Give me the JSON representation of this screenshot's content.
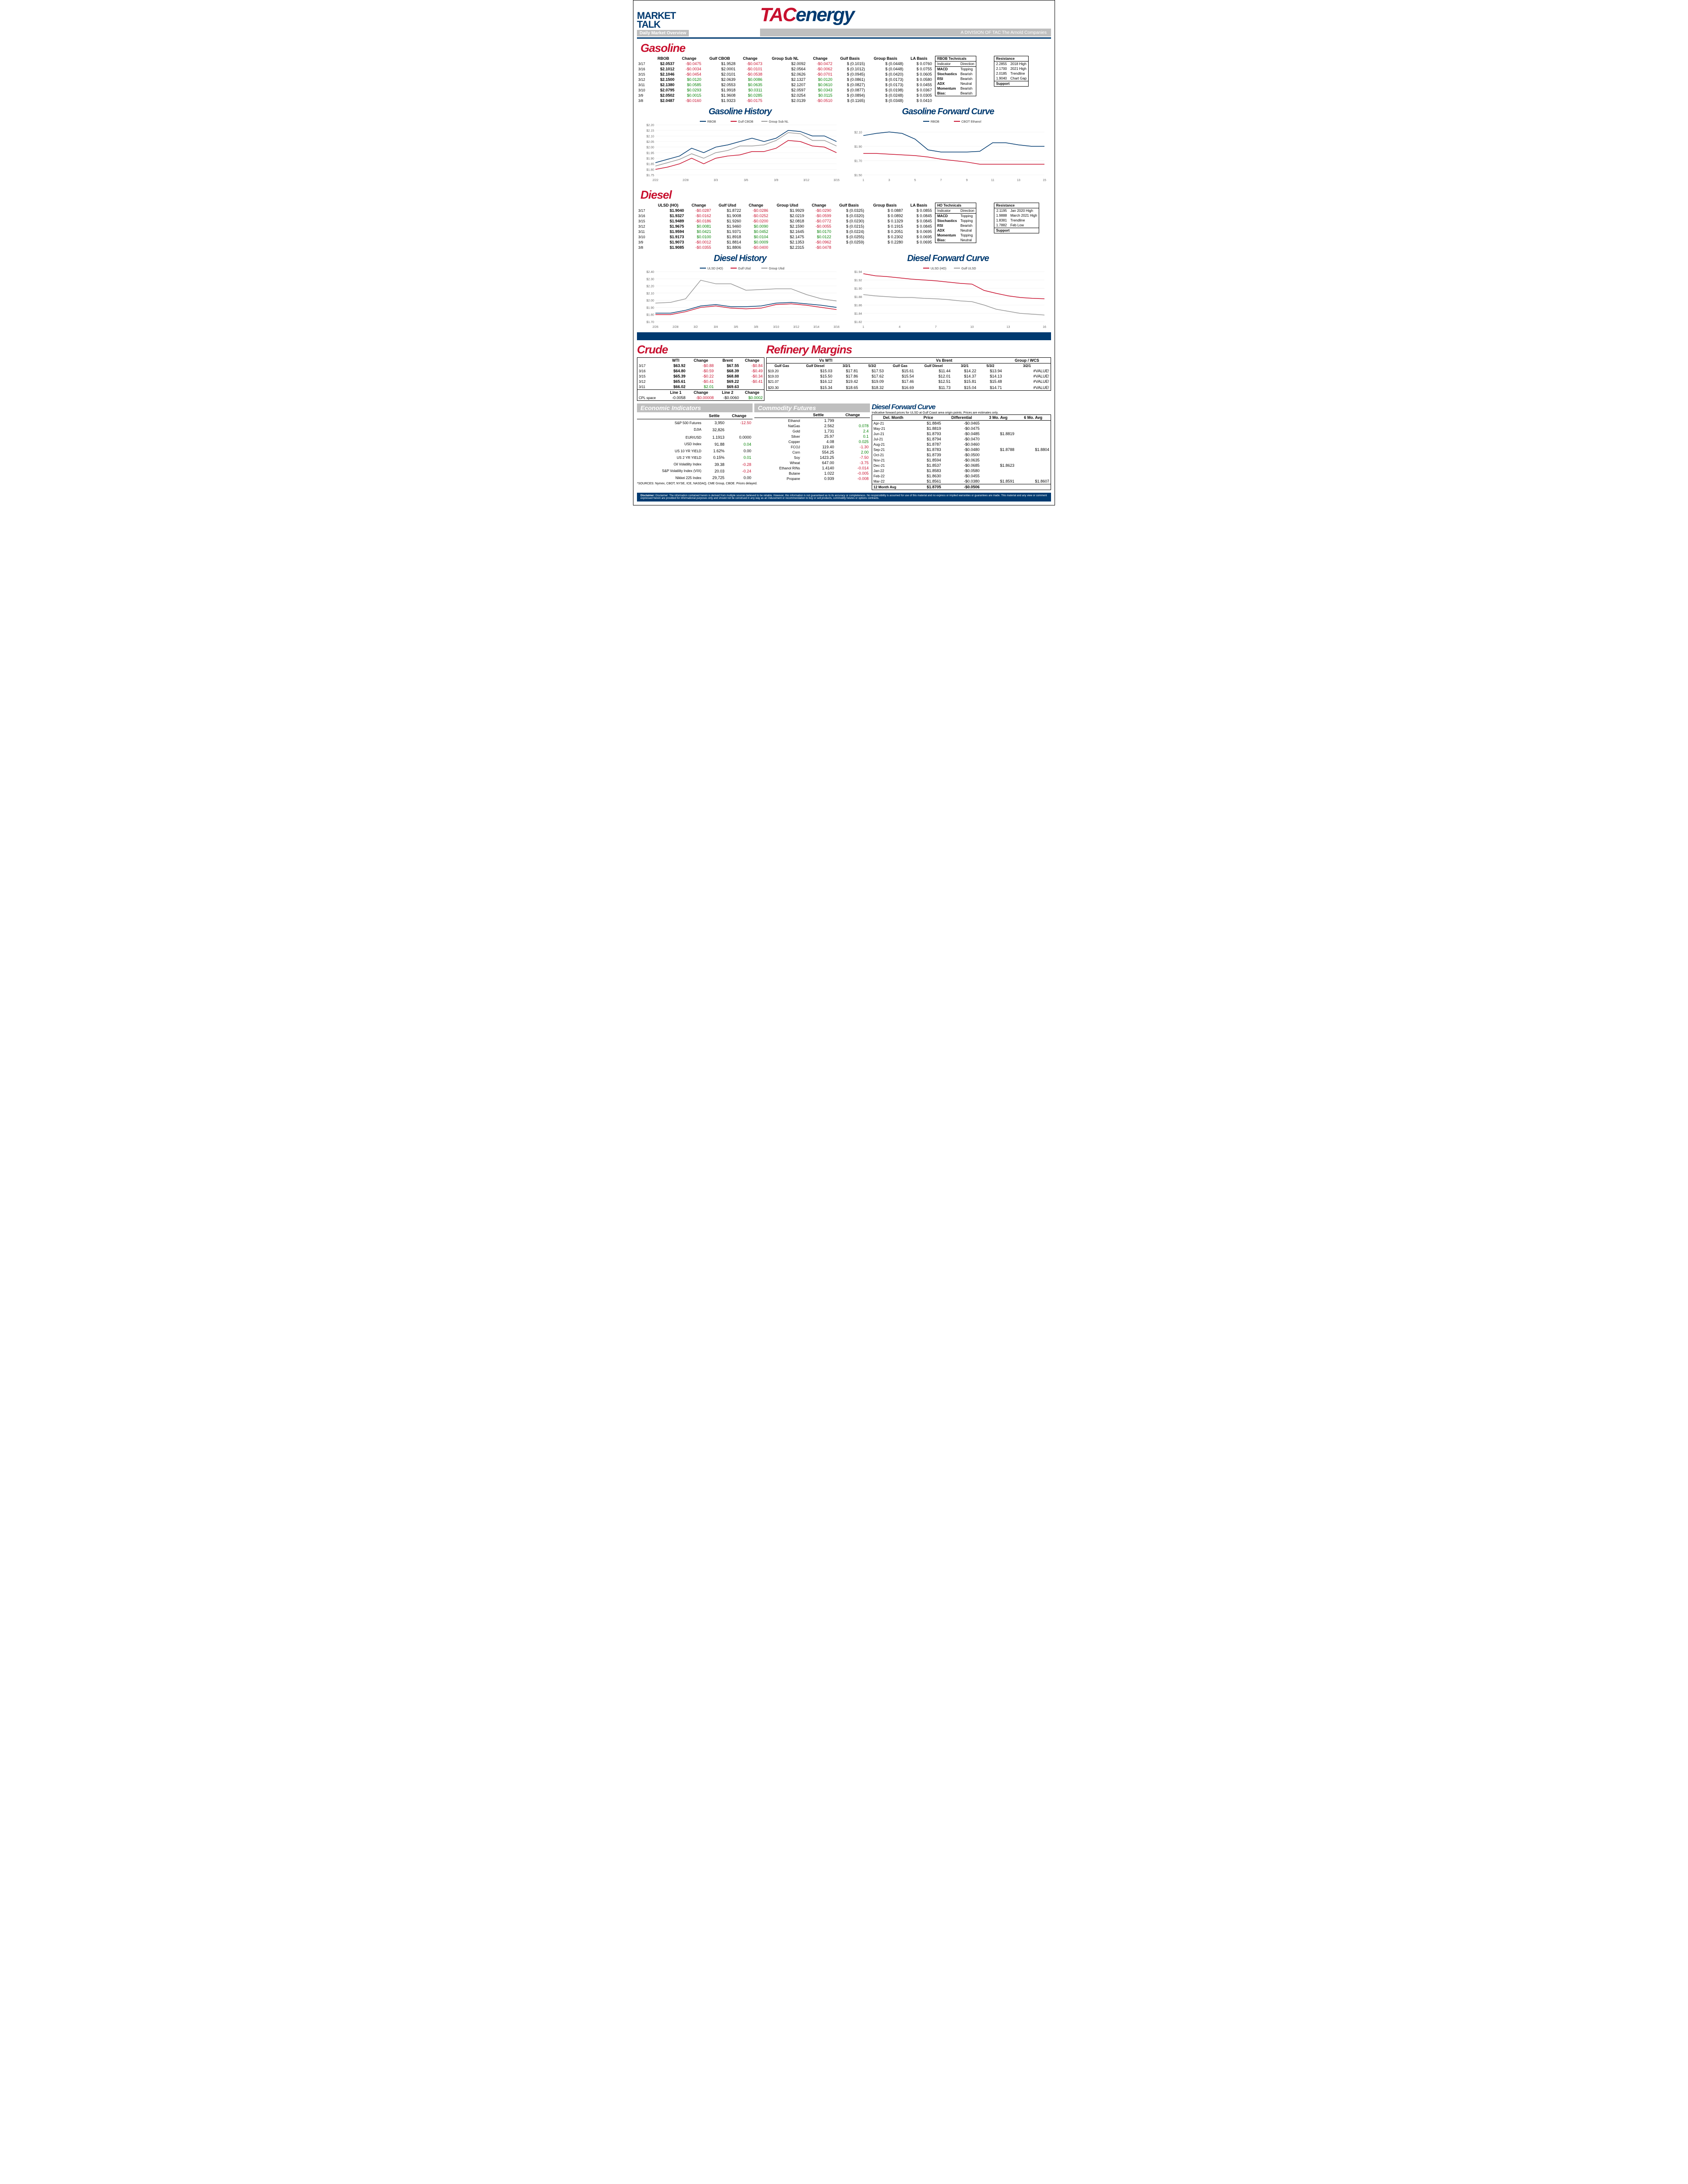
{
  "header": {
    "logo_l1": "MARKET",
    "logo_l2": "TALK",
    "subtitle": "Daily Market Overview",
    "tac": "TAC",
    "energy": "energy",
    "division": "A DIVISION OF TAC The Arnold Companies"
  },
  "gasoline": {
    "title": "Gasoline",
    "headers": [
      "",
      "RBOB",
      "Change",
      "Gulf CBOB",
      "Change",
      "Group Sub NL",
      "Change",
      "Gulf Basis",
      "Group Basis",
      "LA Basis"
    ],
    "rows": [
      [
        "3/17",
        "$2.0537",
        "-$0.0475",
        "$1.9528",
        "-$0.0473",
        "$2.0092",
        "-$0.0472",
        "$ (0.1015)",
        "$    (0.0448)",
        "$   0.0760"
      ],
      [
        "3/16",
        "$2.1012",
        "-$0.0034",
        "$2.0001",
        "-$0.0101",
        "$2.0564",
        "-$0.0062",
        "$ (0.1012)",
        "$    (0.0448)",
        "$   0.0755"
      ],
      [
        "3/15",
        "$2.1046",
        "-$0.0454",
        "$2.0101",
        "-$0.0538",
        "$2.0626",
        "-$0.0701",
        "$ (0.0945)",
        "$    (0.0420)",
        "$   0.0605"
      ],
      [
        "3/12",
        "$2.1500",
        "$0.0120",
        "$2.0639",
        "$0.0086",
        "$2.1327",
        "$0.0120",
        "$ (0.0861)",
        "$    (0.0173)",
        "$   0.0580"
      ],
      [
        "3/11",
        "$2.1380",
        "$0.0585",
        "$2.0553",
        "$0.0635",
        "$2.1207",
        "$0.0610",
        "$ (0.0827)",
        "$    (0.0173)",
        "$   0.0455"
      ],
      [
        "3/10",
        "$2.0795",
        "$0.0293",
        "$1.9918",
        "$0.0311",
        "$2.0597",
        "$0.0343",
        "$ (0.0877)",
        "$    (0.0198)",
        "$   0.0367"
      ],
      [
        "3/9",
        "$2.0502",
        "$0.0015",
        "$1.9608",
        "$0.0285",
        "$2.0254",
        "$0.0115",
        "$ (0.0894)",
        "$    (0.0248)",
        "$   0.0305"
      ],
      [
        "3/8",
        "$2.0487",
        "-$0.0160",
        "$1.9323",
        "-$0.0175",
        "$2.0139",
        "-$0.0510",
        "$ (0.1165)",
        "$    (0.0348)",
        "$   0.0410"
      ]
    ],
    "tech_title": "RBOB Technicals",
    "tech_headers": [
      "Indicator",
      "Direction"
    ],
    "tech_rows": [
      [
        "MACD",
        "Topping"
      ],
      [
        "Stochastics",
        "Bearish"
      ],
      [
        "RSI",
        "Bearish"
      ],
      [
        "ADX",
        "Neutral"
      ],
      [
        "Momentum",
        "Bearish"
      ],
      [
        "Bias:",
        "Bearish"
      ]
    ],
    "res_title": "Resistance",
    "res_rows": [
      [
        "2.2855",
        "2018 High"
      ],
      [
        "2.1700",
        "2021 High"
      ],
      [
        "2.0185",
        "Trendline"
      ],
      [
        "1.9040",
        "Chart Gap"
      ]
    ],
    "sup_title": "Support"
  },
  "gas_history": {
    "title": "Gasoline History",
    "series": [
      "RBOB",
      "Gulf CBOB",
      "Group Sub NL"
    ],
    "colors": [
      "#003a70",
      "#c8102e",
      "#999999"
    ],
    "xlabels": [
      "2/22",
      "2/28",
      "3/3",
      "3/6",
      "3/9",
      "3/12",
      "3/15"
    ],
    "ylabels": [
      "$1.75",
      "$1.80",
      "$1.85",
      "$1.90",
      "$1.95",
      "$2.00",
      "$2.05",
      "$2.10",
      "$2.15",
      "$2.20"
    ],
    "ylim": [
      1.75,
      2.2
    ],
    "data": {
      "RBOB": [
        1.86,
        1.89,
        1.92,
        1.99,
        1.95,
        2.0,
        2.02,
        2.05,
        2.08,
        2.05,
        2.08,
        2.15,
        2.14,
        2.1,
        2.1,
        2.05
      ],
      "Gulf CBOB": [
        1.8,
        1.82,
        1.85,
        1.9,
        1.85,
        1.9,
        1.92,
        1.93,
        1.96,
        1.96,
        1.99,
        2.06,
        2.05,
        2.01,
        2.0,
        1.95
      ],
      "Group Sub": [
        1.83,
        1.86,
        1.89,
        1.94,
        1.9,
        1.95,
        1.97,
        2.01,
        2.01,
        2.02,
        2.06,
        2.13,
        2.12,
        2.06,
        2.06,
        2.01
      ]
    }
  },
  "gas_forward": {
    "title": "Gasoline Forward Curve",
    "series": [
      "RBOB",
      "CBOT Ethanol"
    ],
    "colors": [
      "#003a70",
      "#c8102e"
    ],
    "xlabels": [
      "1",
      "3",
      "5",
      "7",
      "9",
      "11",
      "13",
      "15"
    ],
    "ylabels": [
      "$1.50",
      "$1.70",
      "$1.90",
      "$2.10"
    ],
    "ylim": [
      1.5,
      2.2
    ],
    "data": {
      "RBOB": [
        2.05,
        2.08,
        2.1,
        2.08,
        2.0,
        1.85,
        1.82,
        1.82,
        1.82,
        1.83,
        1.95,
        1.95,
        1.92,
        1.9,
        1.9
      ],
      "Eth": [
        1.8,
        1.8,
        1.79,
        1.78,
        1.77,
        1.75,
        1.72,
        1.7,
        1.68,
        1.65,
        1.65,
        1.65,
        1.65,
        1.65,
        1.65
      ]
    }
  },
  "diesel": {
    "title": "Diesel",
    "headers": [
      "",
      "ULSD (HO)",
      "Change",
      "Gulf Ulsd",
      "Change",
      "Group Ulsd",
      "Change",
      "Gulf Basis",
      "Group Basis",
      "LA Basis"
    ],
    "rows": [
      [
        "3/17",
        "$1.9040",
        "-$0.0287",
        "$1.8722",
        "-$0.0286",
        "$1.9929",
        "-$0.0290",
        "$ (0.0325)",
        "$   0.0887",
        "$   0.0855"
      ],
      [
        "3/16",
        "$1.9327",
        "-$0.0162",
        "$1.9008",
        "-$0.0252",
        "$2.0219",
        "-$0.0599",
        "$ (0.0320)",
        "$   0.0892",
        "$   0.0845"
      ],
      [
        "3/15",
        "$1.9489",
        "-$0.0186",
        "$1.9260",
        "-$0.0200",
        "$2.0818",
        "-$0.0772",
        "$ (0.0230)",
        "$   0.1329",
        "$   0.0845"
      ],
      [
        "3/12",
        "$1.9675",
        "$0.0081",
        "$1.9460",
        "$0.0090",
        "$2.1590",
        "-$0.0055",
        "$ (0.0215)",
        "$   0.1915",
        "$   0.0845"
      ],
      [
        "3/11",
        "$1.9594",
        "$0.0421",
        "$1.9371",
        "$0.0452",
        "$2.1645",
        "$0.0170",
        "$ (0.0224)",
        "$   0.2051",
        "$   0.0695"
      ],
      [
        "3/10",
        "$1.9173",
        "$0.0100",
        "$1.8918",
        "$0.0104",
        "$2.1475",
        "$0.0122",
        "$ (0.0255)",
        "$   0.2302",
        "$   0.0695"
      ],
      [
        "3/9",
        "$1.9073",
        "-$0.0012",
        "$1.8814",
        "$0.0009",
        "$2.1353",
        "-$0.0962",
        "$ (0.0259)",
        "$   0.2280",
        "$   0.0695"
      ],
      [
        "3/8",
        "$1.9085",
        "-$0.0355",
        "$1.8806",
        "-$0.0400",
        "$2.2315",
        "-$0.0478",
        "",
        "",
        ""
      ]
    ],
    "tech_title": "HO Technicals",
    "tech_rows": [
      [
        "MACD",
        "Topping"
      ],
      [
        "Stochastics",
        "Topping"
      ],
      [
        "RSI",
        "Bearish"
      ],
      [
        "ADX",
        "Neutral"
      ],
      [
        "Momentum",
        "Topping"
      ],
      [
        "Bias:",
        "Neutral"
      ]
    ],
    "res_rows": [
      [
        "2.1195",
        "Jan 2020 High"
      ],
      [
        "1.9888",
        "March 2021 High"
      ],
      [
        "1.8381",
        "Trendline"
      ],
      [
        "1.7882",
        "Feb Low"
      ]
    ]
  },
  "diesel_history": {
    "title": "Diesel History",
    "series": [
      "ULSD (HO)",
      "Gulf Ulsd",
      "Group Ulsd"
    ],
    "colors": [
      "#003a70",
      "#c8102e",
      "#999999"
    ],
    "xlabels": [
      "2/26",
      "2/28",
      "3/2",
      "3/4",
      "3/6",
      "3/8",
      "3/10",
      "3/12",
      "3/14",
      "3/16"
    ],
    "ylabels": [
      "$1.70",
      "$1.80",
      "$1.90",
      "$2.00",
      "$2.10",
      "$2.20",
      "$2.30",
      "$2.40"
    ],
    "ylim": [
      1.7,
      2.4
    ],
    "data": {
      "ULSD": [
        1.82,
        1.82,
        1.86,
        1.92,
        1.94,
        1.91,
        1.91,
        1.92,
        1.96,
        1.97,
        1.95,
        1.93,
        1.9
      ],
      "Gulf": [
        1.8,
        1.8,
        1.84,
        1.9,
        1.92,
        1.89,
        1.88,
        1.89,
        1.94,
        1.95,
        1.93,
        1.9,
        1.87
      ],
      "Group": [
        1.96,
        1.97,
        2.02,
        2.28,
        2.23,
        2.23,
        2.14,
        2.15,
        2.16,
        2.16,
        2.08,
        2.02,
        1.99
      ]
    }
  },
  "diesel_forward": {
    "title": "Diesel Forward Curve",
    "series": [
      "ULSD (HO)",
      "Gulf ULSD"
    ],
    "colors": [
      "#c8102e",
      "#999999"
    ],
    "xlabels": [
      "1",
      "4",
      "7",
      "10",
      "13",
      "16"
    ],
    "ylabels": [
      "$1.82",
      "$1.84",
      "$1.86",
      "$1.88",
      "$1.90",
      "$1.92",
      "$1.94"
    ],
    "ylim": [
      1.82,
      1.94
    ],
    "data": {
      "ULSD": [
        1.935,
        1.93,
        1.928,
        1.925,
        1.922,
        1.92,
        1.918,
        1.915,
        1.912,
        1.91,
        1.895,
        1.888,
        1.882,
        1.878,
        1.876,
        1.875
      ],
      "Gulf": [
        1.885,
        1.882,
        1.88,
        1.878,
        1.878,
        1.876,
        1.875,
        1.873,
        1.87,
        1.868,
        1.86,
        1.85,
        1.845,
        1.84,
        1.838,
        1.836
      ]
    }
  },
  "crude": {
    "title": "Crude",
    "headers": [
      "",
      "WTI",
      "Change",
      "Brent",
      "Change"
    ],
    "rows": [
      [
        "3/17",
        "$63.92",
        "-$0.88",
        "$67.55",
        "-$0.84"
      ],
      [
        "3/16",
        "$64.80",
        "-$0.59",
        "$68.39",
        "-$0.49"
      ],
      [
        "3/15",
        "$65.39",
        "-$0.22",
        "$68.88",
        "-$0.34"
      ],
      [
        "3/12",
        "$65.61",
        "-$0.41",
        "$69.22",
        "-$0.41"
      ],
      [
        "3/11",
        "$66.02",
        "$2.01",
        "$69.63",
        ""
      ]
    ],
    "cpl_headers": [
      "",
      "Line 1",
      "Change",
      "Line 2",
      "Change"
    ],
    "cpl_row": [
      "CPL space",
      "-0.0058",
      "-$0.00008",
      "-$0.0060",
      "$0.0002"
    ]
  },
  "margins": {
    "title": "Refinery Margins",
    "wti_h": "Vs WTI",
    "brent_h": "Vs Brent",
    "group_h": "Group / WCS",
    "sub_headers": [
      "Gulf Gas",
      "Gulf Diesel",
      "3/2/1",
      "5/3/2",
      "Gulf Gas",
      "Gulf Diesel",
      "3/2/1",
      "5/3/2",
      "3/2/1"
    ],
    "rows": [
      [
        "$19.20",
        "$15.03",
        "$17.81",
        "$17.53",
        "$15.61",
        "$11.44",
        "$14.22",
        "$13.94",
        "#VALUE!"
      ],
      [
        "$19.03",
        "$15.50",
        "$17.86",
        "$17.62",
        "$15.54",
        "$12.01",
        "$14.37",
        "$14.13",
        "#VALUE!"
      ],
      [
        "$21.07",
        "$16.12",
        "$19.42",
        "$19.09",
        "$17.46",
        "$12.51",
        "$15.81",
        "$15.48",
        "#VALUE!"
      ],
      [
        "",
        "",
        "",
        "",
        "",
        "",
        "",
        "",
        ""
      ],
      [
        "$20.30",
        "$15.34",
        "$18.65",
        "$18.32",
        "$16.69",
        "$11.73",
        "$15.04",
        "$14.71",
        "#VALUE!"
      ]
    ]
  },
  "econ": {
    "title": "Economic Indicators",
    "headers": [
      "",
      "Settle",
      "Change"
    ],
    "rows": [
      [
        "S&P 500 Futures",
        "3,950",
        "-12.50"
      ],
      [
        "DJIA",
        "32,826",
        ""
      ],
      [
        "",
        "",
        ""
      ],
      [
        "EUR/USD",
        "1.1913",
        "0.0000"
      ],
      [
        "USD Index",
        "91.88",
        "0.04"
      ],
      [
        "US 10 YR YIELD",
        "1.62%",
        "0.00"
      ],
      [
        "US 2 YR YIELD",
        "0.15%",
        "0.01"
      ],
      [
        "Oil Volatility Index",
        "39.38",
        "-0.28"
      ],
      [
        "S&P Volatility Index (VIX)",
        "20.03",
        "-0.24"
      ],
      [
        "Nikkei 225 Index",
        "29,725",
        "0.00"
      ]
    ]
  },
  "futures": {
    "title": "Commodity Futures",
    "headers": [
      "",
      "Settle",
      "Change"
    ],
    "rows": [
      [
        "Ethanol",
        "1.799",
        ""
      ],
      [
        "NatGas",
        "2.562",
        "0.078"
      ],
      [
        "Gold",
        "1,731",
        "2.4"
      ],
      [
        "Silver",
        "25.97",
        "0.1"
      ],
      [
        "Copper",
        "4.08",
        "0.025"
      ],
      [
        "FCOJ",
        "119.40",
        "-1.30"
      ],
      [
        "Corn",
        "554.25",
        "2.00"
      ],
      [
        "Soy",
        "1423.25",
        "-7.50"
      ],
      [
        "Wheat",
        "647.00",
        "-3.75"
      ],
      [
        "Ethanol RINs",
        "1.4140",
        "-0.014"
      ],
      [
        "Butane",
        "1.022",
        "-0.005"
      ],
      [
        "Propane",
        "0.939",
        "-0.008"
      ]
    ]
  },
  "dfc_table": {
    "title": "Diesel Forward Curve",
    "sub": "Indicative forward prices for ULSD at Gulf Coast area origin points.  Prices are estimates only.",
    "headers": [
      "Del. Month",
      "Price",
      "Differential",
      "3 Mo. Avg",
      "6 Mo. Avg"
    ],
    "rows": [
      [
        "Apr-21",
        "$1.8845",
        "-$0.0465",
        "",
        ""
      ],
      [
        "May-21",
        "$1.8819",
        "-$0.0475",
        "",
        ""
      ],
      [
        "Jun-21",
        "$1.8793",
        "-$0.0485",
        "$1.8819",
        ""
      ],
      [
        "Jul-21",
        "$1.8794",
        "-$0.0470",
        "",
        ""
      ],
      [
        "Aug-21",
        "$1.8787",
        "-$0.0460",
        "",
        ""
      ],
      [
        "Sep-21",
        "$1.8783",
        "-$0.0480",
        "$1.8788",
        "$1.8804"
      ],
      [
        "Oct-21",
        "$1.8739",
        "-$0.0500",
        "",
        ""
      ],
      [
        "Nov-21",
        "$1.8594",
        "-$0.0635",
        "",
        ""
      ],
      [
        "Dec-21",
        "$1.8537",
        "-$0.0685",
        "$1.8623",
        ""
      ],
      [
        "Jan-22",
        "$1.8583",
        "-$0.0580",
        "",
        ""
      ],
      [
        "Feb-22",
        "$1.8630",
        "-$0.0455",
        "",
        ""
      ],
      [
        "Mar-22",
        "$1.8561",
        "-$0.0380",
        "$1.8591",
        "$1.8607"
      ],
      [
        "12 Month Avg",
        "$1.8705",
        "-$0.0506",
        "",
        ""
      ]
    ]
  },
  "sources": "*SOURCES: Nymex, CBOT, NYSE, ICE, NASDAQ, CME Group, CBOE.   Prices delayed.",
  "disclaimer": "Disclaimer: The information contained herein is derived from multiple sources believed to be reliable. However, this information is not guaranteed as to its accuracy or completeness. No responsibility is assumed for use of this material and no express or implied warranties or guarantees are made. This material and any view or comment expressed herein are provided for informational purposes only and should not be construed in any way as an inducement or recommendation to buy or sell products, commodity futures or options contracts."
}
